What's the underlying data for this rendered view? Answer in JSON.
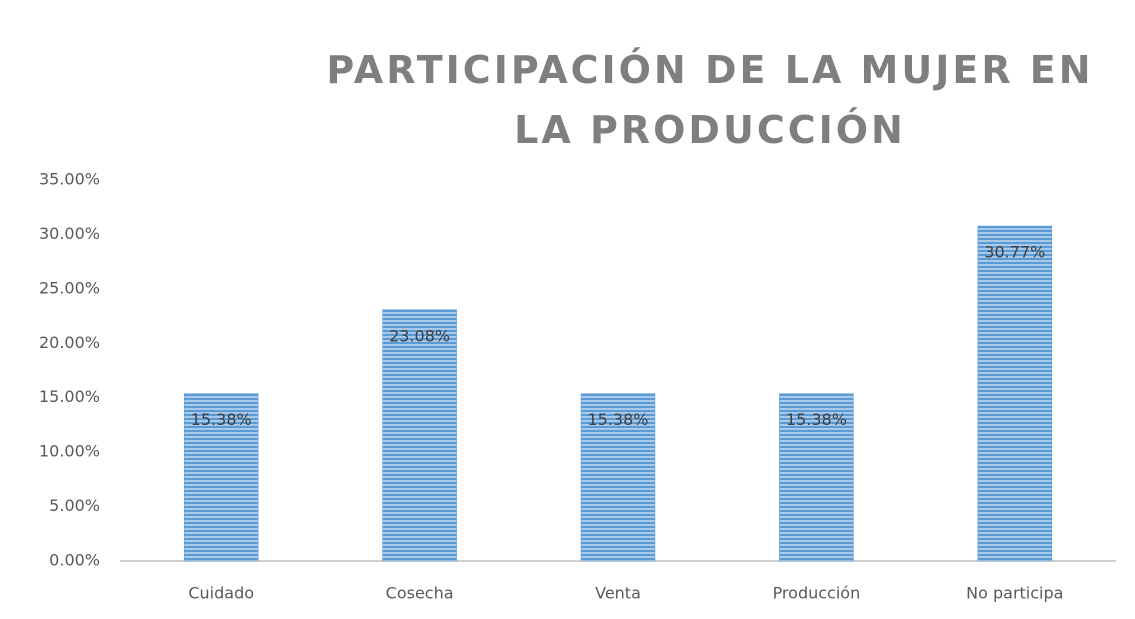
{
  "chart_data": {
    "type": "bar",
    "title": "PARTICIPACIÓN DE LA MUJER EN LA PRODUCCIÓN",
    "categories": [
      "Cuidado",
      "Cosecha",
      "Venta",
      "Producción",
      "No participa"
    ],
    "values": [
      15.38,
      23.08,
      15.38,
      15.38,
      30.77
    ],
    "value_labels": [
      "15.38%",
      "23.08%",
      "15.38%",
      "15.38%",
      "30.77%"
    ],
    "color": "#5b9bd5",
    "ylim": [
      0,
      35
    ],
    "yticks": [
      {
        "value": 0,
        "label": "0.00%"
      },
      {
        "value": 5,
        "label": "5.00%"
      },
      {
        "value": 10,
        "label": "10.00%"
      },
      {
        "value": 15,
        "label": "15.00%"
      },
      {
        "value": 20,
        "label": "20.00%"
      },
      {
        "value": 25,
        "label": "25.00%"
      },
      {
        "value": 30,
        "label": "30.00%"
      },
      {
        "value": 35,
        "label": "35.00%"
      }
    ],
    "grid": false
  }
}
